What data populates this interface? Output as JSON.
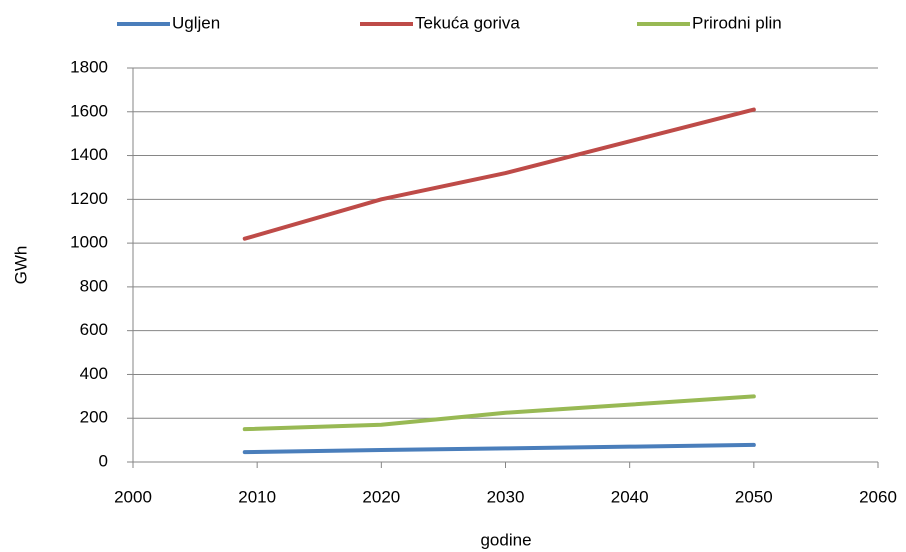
{
  "chart_data": {
    "type": "line",
    "x_label": "godine",
    "y_label": "GWh",
    "x": [
      2009,
      2020,
      2030,
      2040,
      2050
    ],
    "series": [
      {
        "name": "Ugljen",
        "color": "#4a7ebb",
        "values": [
          45,
          55,
          62,
          70,
          78
        ]
      },
      {
        "name": "Tekuća goriva",
        "color": "#be4b48",
        "values": [
          1020,
          1200,
          1320,
          1465,
          1610
        ]
      },
      {
        "name": "Prirodni plin",
        "color": "#98b954",
        "values": [
          150,
          170,
          225,
          262,
          300
        ]
      }
    ],
    "xlim": [
      2000,
      2060
    ],
    "xticks": [
      2000,
      2010,
      2020,
      2030,
      2040,
      2050,
      2060
    ],
    "ylim": [
      0,
      1800
    ],
    "yticks": [
      0,
      200,
      400,
      600,
      800,
      1000,
      1200,
      1400,
      1600,
      1800
    ],
    "grid": true,
    "legend": "top"
  }
}
